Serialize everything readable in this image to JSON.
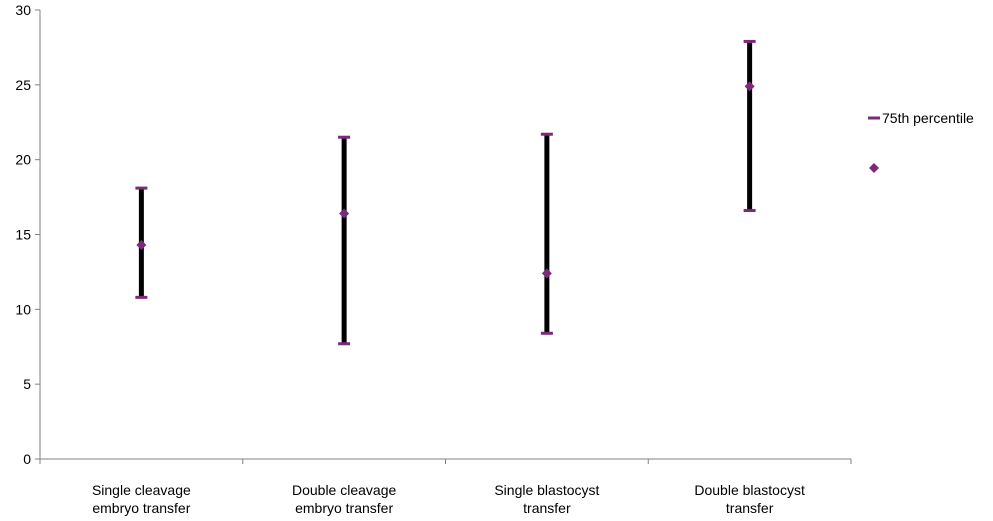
{
  "chart_data": {
    "type": "scatter",
    "categories": [
      [
        "Single cleavage",
        "embryo transfer"
      ],
      [
        "Double cleavage",
        "embryo transfer"
      ],
      [
        "Single blastocyst",
        "transfer"
      ],
      [
        "Double blastocyst",
        "transfer"
      ]
    ],
    "y_ticks": [
      "0",
      "5",
      "10",
      "15",
      "20",
      "25",
      "30"
    ],
    "ylim": [
      0,
      30
    ],
    "grid": false,
    "legend_position": "right",
    "series": [
      {
        "name": "75th percentile",
        "values": [
          18.1,
          21.5,
          21.7,
          27.9
        ],
        "marker": "dash",
        "color": "#7B2A7A"
      },
      {
        "name": "",
        "values": [
          14.3,
          16.4,
          12.4,
          24.9
        ],
        "marker": "diamond",
        "color": "#7B2A7A"
      },
      {
        "name": "",
        "values": [
          10.8,
          7.7,
          8.4,
          16.6
        ],
        "marker": "dash",
        "color": "#7B2A7A"
      }
    ],
    "bar_color": "#000000"
  }
}
